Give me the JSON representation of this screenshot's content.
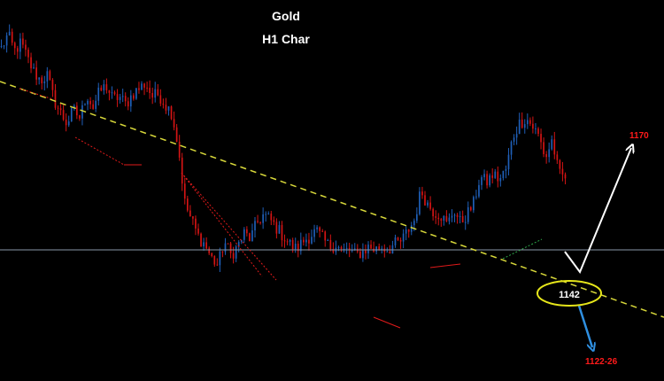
{
  "chart_data": {
    "type": "candlestick",
    "title": "Gold",
    "subtitle": "H1 Char",
    "colors": {
      "background": "#000000",
      "bull": "#1f5fb8",
      "bear": "#d41414",
      "trendline": "#d8d83a",
      "horizontal_line": "#8a97a8",
      "ellipse": "#e6e61a",
      "arrow_up": "#ffffff",
      "arrow_down": "#2f8fe0",
      "label": "#ff1a1a"
    },
    "annotations": {
      "target_up": "1170",
      "target_down": "1122-26",
      "support": "1142"
    },
    "price_path": [
      1175.0,
      1177.5,
      1174.5,
      1176.0,
      1173.0,
      1170.5,
      1169.0,
      1170.0,
      1165.5,
      1163.0,
      1161.0,
      1163.5,
      1162.0,
      1166.5,
      1164.0,
      1167.0,
      1168.0,
      1165.5,
      1166.0,
      1164.5,
      1166.5,
      1167.5,
      1168.5,
      1166.0,
      1166.5,
      1164.5,
      1163.0,
      1156.5,
      1146.0,
      1143.0,
      1140.0,
      1138.5,
      1136.0,
      1134.5,
      1139.0,
      1136.5,
      1138.0,
      1140.5,
      1139.5,
      1142.5,
      1144.0,
      1143.0,
      1141.5,
      1140.0,
      1138.5,
      1137.5,
      1139.0,
      1140.0,
      1141.0,
      1139.5,
      1138.0,
      1138.5,
      1137.0,
      1137.5,
      1136.5,
      1137.0,
      1138.0,
      1137.5,
      1138.0,
      1137.5,
      1138.5,
      1139.0,
      1141.0,
      1143.0,
      1148.5,
      1146.0,
      1144.5,
      1144.0,
      1142.0,
      1145.0,
      1142.5,
      1144.0,
      1146.0,
      1151.0,
      1150.0,
      1151.5,
      1150.5,
      1152.5,
      1158.5,
      1161.0,
      1162.0,
      1160.5,
      1158.5,
      1154.5,
      1158.0,
      1151.5,
      1151.0
    ],
    "ylim": [
      1113,
      1184
    ],
    "horizontal_level": 1150.5
  }
}
